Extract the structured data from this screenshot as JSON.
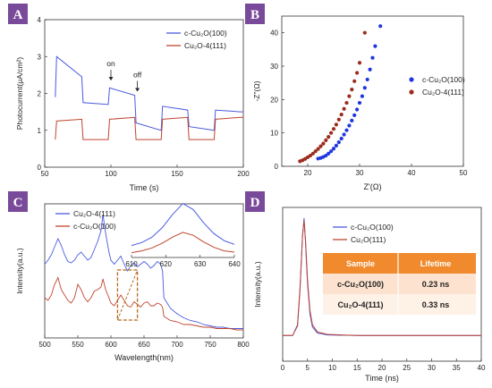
{
  "chart_data": [
    {
      "panel": "A",
      "type": "line",
      "xlabel": "Time (s)",
      "ylabel": "Photocurrent(μA/cm²)",
      "xlim": [
        50,
        200
      ],
      "ylim": [
        0,
        4
      ],
      "xticks": [
        50,
        100,
        150,
        200
      ],
      "yticks": [
        0,
        1,
        2,
        3,
        4
      ],
      "grid": false,
      "legend": "top-right",
      "annotations": [
        {
          "text": "on",
          "x": 100,
          "y": 2.35
        },
        {
          "text": "off",
          "x": 120,
          "y": 2.05
        }
      ],
      "series": [
        {
          "name": "c-Cu₂O(100)",
          "color": "#4a5be0",
          "x": [
            58,
            59,
            78,
            79,
            98,
            99,
            118,
            119,
            138,
            139,
            158,
            159,
            178,
            179,
            198,
            199,
            200
          ],
          "y": [
            1.9,
            3.0,
            2.45,
            1.75,
            1.7,
            2.15,
            1.95,
            1.2,
            1.0,
            1.65,
            1.55,
            1.1,
            1.0,
            1.55,
            1.5,
            1.5,
            1.5
          ]
        },
        {
          "name": "Cu₂O-4(111)",
          "color": "#c0442e",
          "x": [
            58,
            59,
            78,
            79,
            98,
            99,
            118,
            119,
            138,
            139,
            158,
            159,
            178,
            179,
            198,
            199,
            200
          ],
          "y": [
            0.75,
            1.25,
            1.3,
            0.75,
            0.75,
            1.3,
            1.35,
            0.75,
            0.75,
            1.3,
            1.35,
            0.75,
            0.75,
            1.3,
            1.35,
            1.35,
            1.35
          ]
        }
      ]
    },
    {
      "panel": "B",
      "type": "scatter",
      "xlabel": "Z'(Ω)",
      "ylabel": "-Z\"(Ω)",
      "xlim": [
        15,
        50
      ],
      "ylim": [
        0,
        45
      ],
      "xticks": [
        20,
        30,
        40,
        50
      ],
      "yticks": [
        0,
        10,
        20,
        30,
        40
      ],
      "grid": false,
      "legend": "right",
      "series": [
        {
          "name": "c-Cu₂O(100)",
          "color": "#1f36e0",
          "x": [
            22.0,
            22.5,
            23.0,
            23.5,
            24.0,
            24.5,
            25.0,
            25.5,
            26.0,
            26.5,
            27.0,
            27.5,
            28.0,
            28.5,
            29.0,
            29.5,
            30.0,
            30.5,
            31.0,
            31.5,
            32.0,
            32.5,
            33.0,
            34.0
          ],
          "y": [
            2.3,
            2.5,
            2.8,
            3.2,
            3.8,
            4.5,
            5.3,
            6.2,
            7.2,
            8.3,
            9.5,
            10.8,
            12.2,
            13.7,
            15.3,
            17.0,
            19.0,
            21.0,
            23.5,
            26.0,
            29.0,
            32.5,
            36.0,
            42.0
          ]
        },
        {
          "name": "Cu₂O-4(111)",
          "color": "#9b2c1e",
          "x": [
            18.5,
            19.0,
            19.5,
            20.0,
            20.5,
            21.0,
            21.5,
            22.0,
            22.5,
            23.0,
            23.5,
            24.0,
            24.5,
            25.0,
            25.5,
            26.0,
            26.5,
            27.0,
            27.5,
            28.0,
            28.5,
            29.0,
            29.5,
            30.0,
            31.0
          ],
          "y": [
            1.5,
            1.8,
            2.2,
            2.7,
            3.2,
            3.8,
            4.5,
            5.2,
            6.0,
            6.8,
            7.8,
            8.8,
            10.0,
            11.2,
            12.5,
            14.0,
            15.5,
            17.2,
            19.0,
            21.0,
            23.0,
            25.5,
            28.0,
            31.0,
            40.0
          ]
        }
      ]
    },
    {
      "panel": "C",
      "type": "line",
      "xlabel": "Wavelength(nm)",
      "ylabel": "Intensity(a.u.)",
      "xlim": [
        500,
        800
      ],
      "xticks": [
        500,
        550,
        600,
        650,
        700,
        750,
        800
      ],
      "grid": false,
      "legend": "top-left",
      "series": [
        {
          "name": "Cu₂O-4(111)",
          "color": "#4a5be0",
          "x": [
            500,
            505,
            510,
            515,
            520,
            525,
            530,
            535,
            540,
            545,
            550,
            555,
            560,
            565,
            570,
            575,
            580,
            585,
            588,
            592,
            597,
            600,
            605,
            610,
            615,
            620,
            625,
            630,
            635,
            640,
            645,
            650,
            655,
            660,
            665,
            670,
            675,
            678,
            680,
            690,
            700,
            710,
            720,
            730,
            740,
            750,
            760,
            770,
            780,
            790,
            800
          ],
          "y": [
            0.55,
            0.58,
            0.62,
            0.68,
            0.74,
            0.69,
            0.62,
            0.57,
            0.56,
            0.58,
            0.62,
            0.64,
            0.61,
            0.58,
            0.6,
            0.66,
            0.72,
            0.8,
            0.92,
            0.78,
            0.64,
            0.58,
            0.55,
            0.58,
            0.61,
            0.55,
            0.5,
            0.54,
            0.56,
            0.53,
            0.55,
            0.57,
            0.55,
            0.52,
            0.54,
            0.57,
            0.55,
            0.5,
            0.3,
            0.22,
            0.18,
            0.15,
            0.13,
            0.12,
            0.1,
            0.09,
            0.08,
            0.08,
            0.07,
            0.07,
            0.07
          ]
        },
        {
          "name": "c-Cu₂O(100)",
          "color": "#c0442e",
          "x": [
            500,
            505,
            510,
            515,
            520,
            525,
            530,
            535,
            540,
            545,
            550,
            555,
            560,
            565,
            570,
            575,
            580,
            585,
            588,
            592,
            597,
            600,
            605,
            610,
            615,
            620,
            625,
            630,
            635,
            640,
            645,
            650,
            655,
            660,
            665,
            670,
            675,
            678,
            680,
            690,
            700,
            710,
            720,
            730,
            740,
            750,
            760,
            770,
            780,
            790,
            800
          ],
          "y": [
            0.3,
            0.28,
            0.32,
            0.4,
            0.45,
            0.36,
            0.32,
            0.28,
            0.26,
            0.3,
            0.4,
            0.36,
            0.3,
            0.27,
            0.3,
            0.35,
            0.36,
            0.38,
            0.44,
            0.36,
            0.3,
            0.26,
            0.24,
            0.28,
            0.32,
            0.28,
            0.24,
            0.23,
            0.27,
            0.25,
            0.23,
            0.26,
            0.27,
            0.24,
            0.24,
            0.26,
            0.25,
            0.23,
            0.16,
            0.13,
            0.12,
            0.1,
            0.1,
            0.09,
            0.08,
            0.08,
            0.07,
            0.07,
            0.07,
            0.06,
            0.06
          ]
        }
      ],
      "inset": {
        "xlim": [
          610,
          640
        ],
        "xticks": [
          610,
          620,
          630,
          640
        ],
        "series": [
          {
            "name": "Cu₂O-4(111)",
            "color": "#4a5be0",
            "x": [
              610,
              613,
              616,
              619,
              622,
              625,
              628,
              631,
              634,
              637,
              640
            ],
            "y": [
              0.2,
              0.25,
              0.34,
              0.5,
              0.72,
              0.9,
              0.8,
              0.58,
              0.4,
              0.28,
              0.22
            ]
          },
          {
            "name": "c-Cu₂O(100)",
            "color": "#c0442e",
            "x": [
              610,
              613,
              616,
              619,
              622,
              625,
              628,
              631,
              634,
              637,
              640
            ],
            "y": [
              0.08,
              0.11,
              0.16,
              0.24,
              0.34,
              0.42,
              0.37,
              0.26,
              0.17,
              0.11,
              0.09
            ]
          }
        ]
      }
    },
    {
      "panel": "D",
      "type": "line",
      "xlabel": "Time (ns)",
      "ylabel": "Intensity(a.u.)",
      "xlim": [
        0,
        40
      ],
      "ylim": [
        0,
        1
      ],
      "xticks": [
        0,
        5,
        10,
        15,
        20,
        25,
        30,
        35,
        40
      ],
      "grid": false,
      "legend": "top-right",
      "series": [
        {
          "name": "c-Cu₂O(100)",
          "color": "#4a5be0",
          "x": [
            0,
            2,
            3,
            3.5,
            4.0,
            4.3,
            4.6,
            5.0,
            5.5,
            6.0,
            7.0,
            9.0,
            15,
            25,
            40
          ],
          "y": [
            0.02,
            0.02,
            0.1,
            0.4,
            0.85,
            1.0,
            0.8,
            0.45,
            0.2,
            0.09,
            0.04,
            0.025,
            0.02,
            0.02,
            0.02
          ]
        },
        {
          "name": "Cu₂O(111)",
          "color": "#c0442e",
          "x": [
            0,
            2,
            3,
            3.5,
            4.0,
            4.3,
            4.6,
            5.0,
            5.5,
            6.0,
            7.0,
            9.0,
            15,
            25,
            40
          ],
          "y": [
            0.02,
            0.02,
            0.11,
            0.42,
            0.86,
            0.98,
            0.82,
            0.48,
            0.23,
            0.11,
            0.05,
            0.03,
            0.02,
            0.02,
            0.02
          ]
        }
      ],
      "table": {
        "headers": [
          "Sample",
          "Lifetime"
        ],
        "rows": [
          [
            "c-Cu₂O(100)",
            "0.23 ns"
          ],
          [
            "Cu₂O-4(111)",
            "0.33 ns"
          ]
        ]
      }
    }
  ],
  "badges": [
    "A",
    "B",
    "C",
    "D"
  ],
  "colors": {
    "badge": "#7a4a9a",
    "table_header": "#f08a2c",
    "table_row": "#fde3cf",
    "table_row_alt": "#fef1e6",
    "inset_box": "#b56a1c"
  }
}
